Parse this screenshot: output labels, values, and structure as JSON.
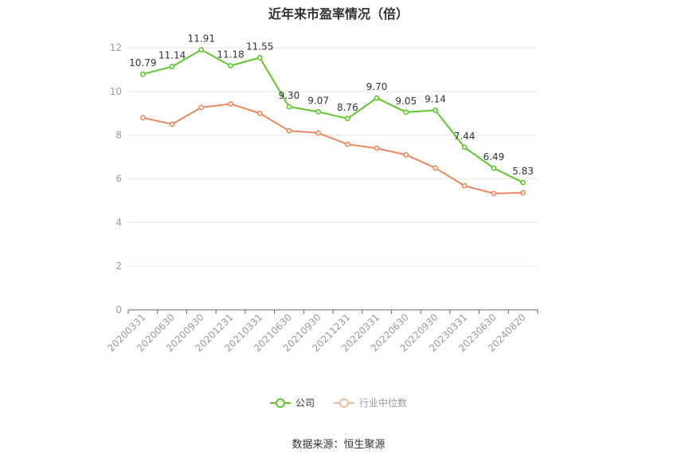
{
  "title": "近年来市盈率情况（倍）",
  "source": "数据来源：恒生聚源",
  "colors": {
    "company": "#5cc72a",
    "industry": "#f0875a",
    "grid": "#e6e6e6",
    "axis": "#666666",
    "tick": "#999999"
  },
  "chart_data": {
    "type": "line",
    "title": "近年来市盈率情况（倍）",
    "categories": [
      "20200331",
      "20200630",
      "20200930",
      "20201231",
      "20210331",
      "20210630",
      "20210930",
      "20211231",
      "20220331",
      "20220630",
      "20220930",
      "20230331",
      "20230630",
      "20240820"
    ],
    "series": [
      {
        "name": "公司",
        "values": [
          10.79,
          11.14,
          11.91,
          11.18,
          11.55,
          9.3,
          9.07,
          8.76,
          9.7,
          9.05,
          9.14,
          7.44,
          6.49,
          5.83
        ],
        "labels": [
          "10.79",
          "11.14",
          "11.91",
          "11.18",
          "11.55",
          "9.30",
          "9.07",
          "8.76",
          "9.70",
          "9.05",
          "9.14",
          "7.44",
          "6.49",
          "5.83"
        ]
      },
      {
        "name": "行业中位数",
        "values": [
          8.8,
          8.5,
          9.27,
          9.43,
          9.0,
          8.2,
          8.1,
          7.58,
          7.4,
          7.1,
          6.5,
          5.68,
          5.33,
          5.36
        ]
      }
    ],
    "yticks": [
      "0",
      "2",
      "4",
      "6",
      "8",
      "10",
      "12"
    ],
    "ylim": [
      0,
      12
    ],
    "grid": true,
    "legend": "bottom"
  }
}
